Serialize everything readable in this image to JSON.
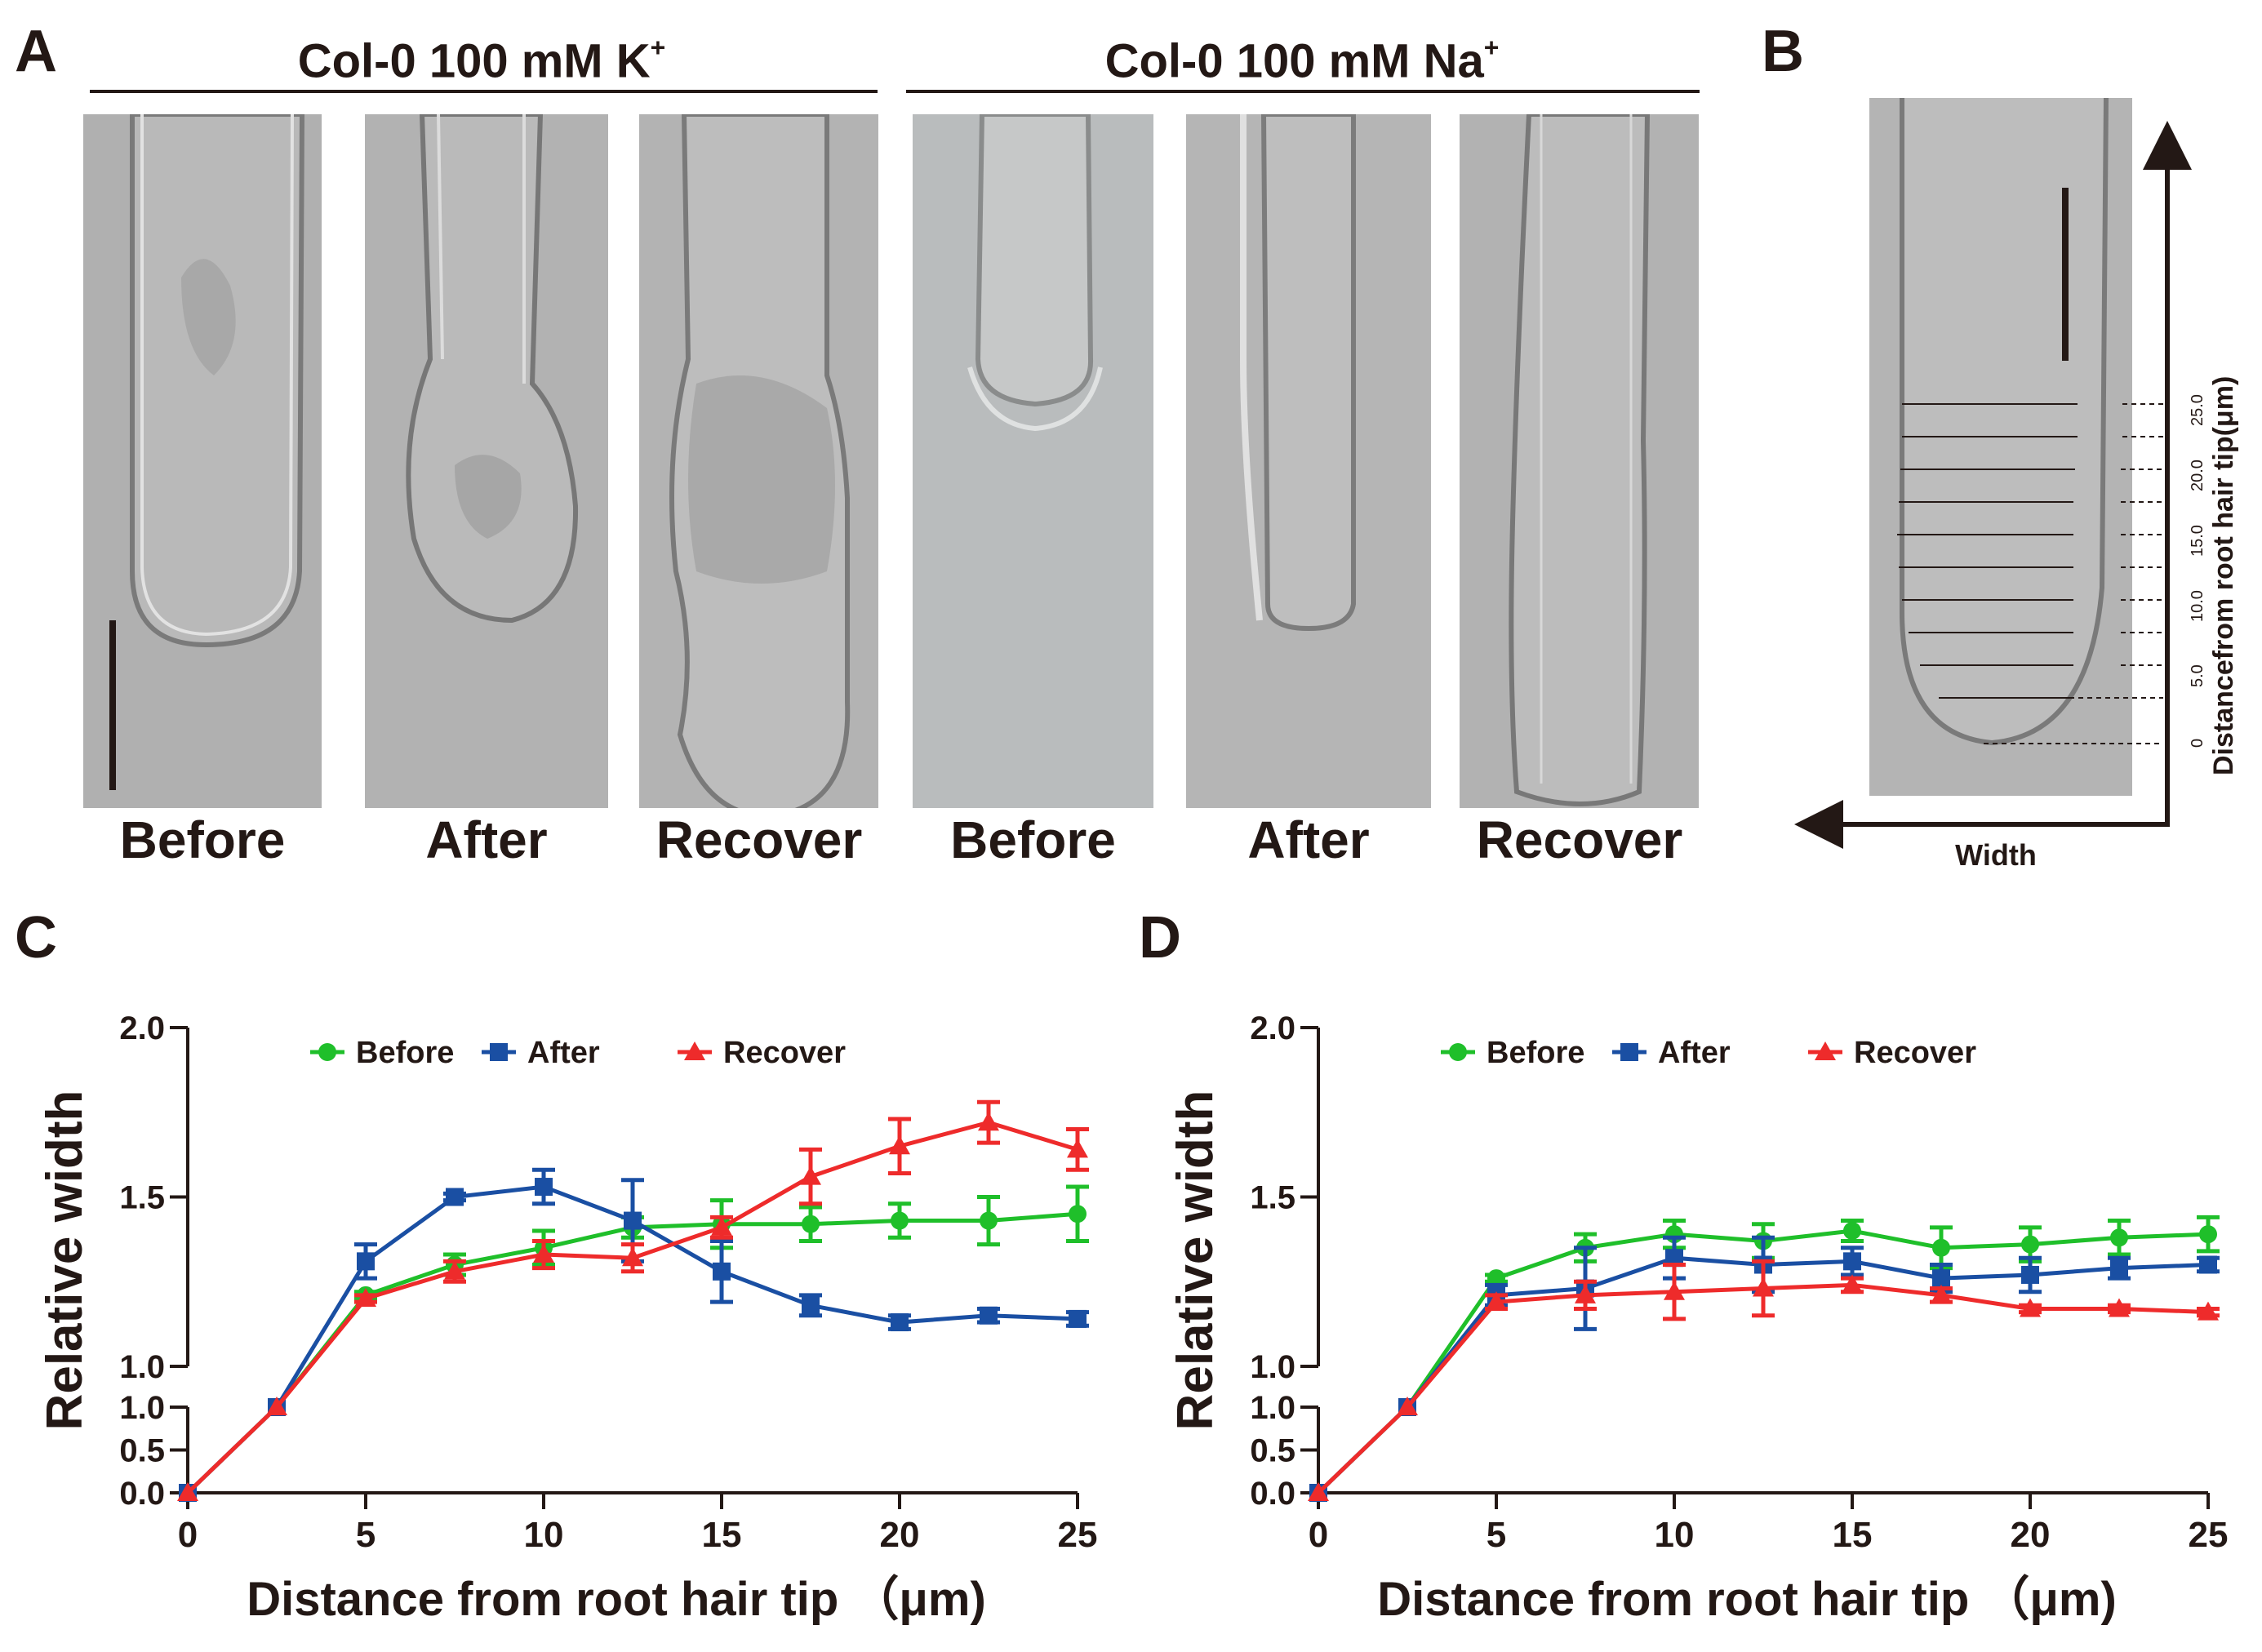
{
  "panels": {
    "A": {
      "letter": "A",
      "group_titles": [
        {
          "text": "Col-0 100 mM K",
          "ion_sup": "+"
        },
        {
          "text": "Col-0 100 mM Na",
          "ion_sup": "+"
        }
      ],
      "photo_labels": [
        "Before",
        "After",
        "Recover",
        "Before",
        "After",
        "Recover"
      ]
    },
    "B": {
      "letter": "B",
      "vertical_axis_label": "Distancefrom root hair tip(μm)",
      "horizontal_axis_label": "Width",
      "tick_labels": [
        "0",
        "5.0",
        "10.0",
        "15.0",
        "20.0",
        "25.0"
      ]
    },
    "C": {
      "letter": "C"
    },
    "D": {
      "letter": "D"
    }
  },
  "colors": {
    "before": "#1fbf2a",
    "after": "#1a4fa3",
    "recover": "#ee2b2b",
    "ink": "#231815"
  },
  "chart_data": [
    {
      "panel": "C",
      "type": "line",
      "xlabel": "Distance from root hair tip （μm)",
      "ylabel": "Relative width",
      "x": [
        0,
        2.5,
        5,
        7.5,
        10,
        12.5,
        15,
        17.5,
        20,
        22.5,
        25
      ],
      "xticks": [
        "0",
        "5",
        "10",
        "15",
        "20",
        "25"
      ],
      "xlim": [
        0,
        25
      ],
      "broken_y_axis": true,
      "lower_segment": {
        "ylim": [
          0,
          1.0
        ],
        "yticks": [
          "0.0",
          "0.5",
          "1.0"
        ]
      },
      "upper_segment": {
        "ylim": [
          1.0,
          2.0
        ],
        "yticks": [
          "1.0",
          "1.5",
          "2.0"
        ]
      },
      "legend_position": "top",
      "series": [
        {
          "name": "Before",
          "color": "#1fbf2a",
          "marker": "circle",
          "values": [
            0,
            1.0,
            1.21,
            1.3,
            1.35,
            1.41,
            1.42,
            1.42,
            1.43,
            1.43,
            1.45
          ],
          "errors": [
            0,
            0,
            0.01,
            0.03,
            0.05,
            0.03,
            0.07,
            0.05,
            0.05,
            0.07,
            0.08
          ]
        },
        {
          "name": "After",
          "color": "#1a4fa3",
          "marker": "square",
          "values": [
            0,
            1.0,
            1.31,
            1.5,
            1.53,
            1.43,
            1.28,
            1.18,
            1.13,
            1.15,
            1.14
          ],
          "errors": [
            0,
            0,
            0.05,
            0.01,
            0.05,
            0.12,
            0.09,
            0.03,
            0.02,
            0.02,
            0.02
          ]
        },
        {
          "name": "Recover",
          "color": "#ee2b2b",
          "marker": "triangle",
          "values": [
            0,
            1.0,
            1.2,
            1.28,
            1.33,
            1.32,
            1.41,
            1.56,
            1.65,
            1.72,
            1.64
          ],
          "errors": [
            0,
            0,
            0.01,
            0.03,
            0.04,
            0.04,
            0.03,
            0.08,
            0.08,
            0.06,
            0.06
          ]
        }
      ]
    },
    {
      "panel": "D",
      "type": "line",
      "xlabel": "Distance from root hair tip （μm)",
      "ylabel": "Relative width",
      "x": [
        0,
        2.5,
        5,
        7.5,
        10,
        12.5,
        15,
        17.5,
        20,
        22.5,
        25
      ],
      "xticks": [
        "0",
        "5",
        "10",
        "15",
        "20",
        "25"
      ],
      "xlim": [
        0,
        25
      ],
      "broken_y_axis": true,
      "lower_segment": {
        "ylim": [
          0,
          1.0
        ],
        "yticks": [
          "0.0",
          "0.5",
          "1.0"
        ]
      },
      "upper_segment": {
        "ylim": [
          1.0,
          2.0
        ],
        "yticks": [
          "1.0",
          "1.5",
          "2.0"
        ]
      },
      "legend_position": "top",
      "series": [
        {
          "name": "Before",
          "color": "#1fbf2a",
          "marker": "circle",
          "values": [
            0,
            1.0,
            1.26,
            1.35,
            1.39,
            1.37,
            1.4,
            1.35,
            1.36,
            1.38,
            1.39
          ],
          "errors": [
            0,
            0,
            0.01,
            0.04,
            0.04,
            0.05,
            0.03,
            0.06,
            0.05,
            0.05,
            0.05
          ]
        },
        {
          "name": "After",
          "color": "#1a4fa3",
          "marker": "square",
          "values": [
            0,
            1.0,
            1.21,
            1.23,
            1.32,
            1.3,
            1.31,
            1.26,
            1.27,
            1.29,
            1.3
          ],
          "errors": [
            0,
            0,
            0.03,
            0.12,
            0.06,
            0.08,
            0.04,
            0.04,
            0.05,
            0.03,
            0.02
          ]
        },
        {
          "name": "Recover",
          "color": "#ee2b2b",
          "marker": "triangle",
          "values": [
            0,
            1.0,
            1.19,
            1.21,
            1.22,
            1.23,
            1.24,
            1.21,
            1.17,
            1.17,
            1.16
          ],
          "errors": [
            0,
            0,
            0.02,
            0.04,
            0.08,
            0.08,
            0.02,
            0.02,
            0.01,
            0.01,
            0.01
          ]
        }
      ]
    }
  ]
}
